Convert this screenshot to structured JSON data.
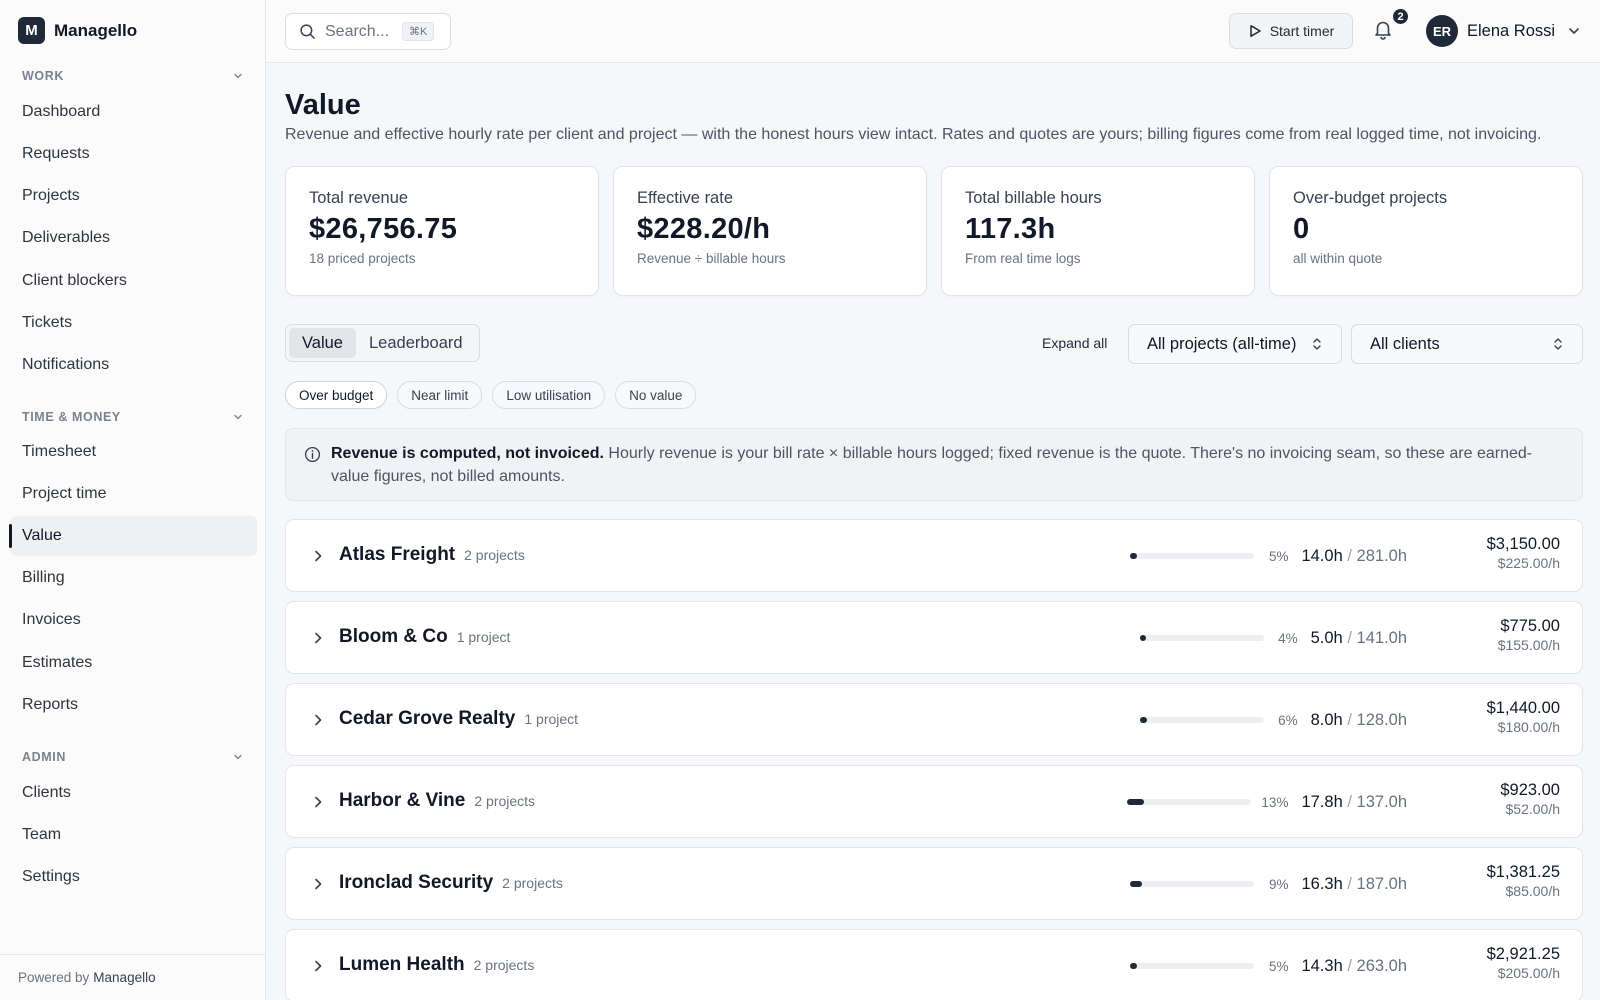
{
  "brand": {
    "mark": "M",
    "name": "Managello"
  },
  "sidebar": {
    "sections": [
      {
        "title": "WORK",
        "items": [
          "Dashboard",
          "Requests",
          "Projects",
          "Deliverables",
          "Client blockers",
          "Tickets",
          "Notifications"
        ]
      },
      {
        "title": "TIME & MONEY",
        "items": [
          "Timesheet",
          "Project time",
          "Value",
          "Billing",
          "Invoices",
          "Estimates",
          "Reports"
        ]
      },
      {
        "title": "ADMIN",
        "items": [
          "Clients",
          "Team",
          "Settings"
        ]
      }
    ],
    "active": "Value",
    "footer_prefix": "Powered by",
    "footer_brand": "Managello"
  },
  "topbar": {
    "search_placeholder": "Search...",
    "search_shortcut": "⌘K",
    "start_timer": "Start timer",
    "notification_count": "2",
    "user_initials": "ER",
    "user_name": "Elena Rossi"
  },
  "page": {
    "title": "Value",
    "subtitle": "Revenue and effective hourly rate per client and project — with the honest hours view intact. Rates and quotes are yours; billing figures come from real logged time, not invoicing."
  },
  "stats": [
    {
      "label": "Total revenue",
      "value": "$26,756.75",
      "foot": "18 priced projects"
    },
    {
      "label": "Effective rate",
      "value": "$228.20/h",
      "foot": "Revenue ÷ billable hours"
    },
    {
      "label": "Total billable hours",
      "value": "117.3h",
      "foot": "From real time logs"
    },
    {
      "label": "Over-budget projects",
      "value": "0",
      "foot": "all within quote"
    }
  ],
  "controls": {
    "tabs": [
      "Value",
      "Leaderboard"
    ],
    "active_tab": "Value",
    "expand_all": "Expand all",
    "project_select": "All projects (all-time)",
    "client_select": "All clients",
    "filters": [
      "Over budget",
      "Near limit",
      "Low utilisation",
      "No value"
    ]
  },
  "notice": {
    "strong": "Revenue is computed, not invoiced.",
    "text": " Hourly revenue is your bill rate × billable hours logged; fixed revenue is the quote. There's no invoicing seam, so these are earned-value figures, not billed amounts."
  },
  "clients": [
    {
      "name": "Atlas Freight",
      "count": "2 projects",
      "pct": "5%",
      "util": 0.05,
      "logged": "14.0h",
      "quota": "281.0h",
      "revenue": "$3,150.00",
      "rate": "$225.00/h"
    },
    {
      "name": "Bloom & Co",
      "count": "1 project",
      "pct": "4%",
      "util": 0.04,
      "logged": "5.0h",
      "quota": "141.0h",
      "revenue": "$775.00",
      "rate": "$155.00/h"
    },
    {
      "name": "Cedar Grove Realty",
      "count": "1 project",
      "pct": "6%",
      "util": 0.06,
      "logged": "8.0h",
      "quota": "128.0h",
      "revenue": "$1,440.00",
      "rate": "$180.00/h"
    },
    {
      "name": "Harbor & Vine",
      "count": "2 projects",
      "pct": "13%",
      "util": 0.13,
      "logged": "17.8h",
      "quota": "137.0h",
      "revenue": "$923.00",
      "rate": "$52.00/h"
    },
    {
      "name": "Ironclad Security",
      "count": "2 projects",
      "pct": "9%",
      "util": 0.09,
      "logged": "16.3h",
      "quota": "187.0h",
      "revenue": "$1,381.25",
      "rate": "$85.00/h"
    },
    {
      "name": "Lumen Health",
      "count": "2 projects",
      "pct": "5%",
      "util": 0.05,
      "logged": "14.3h",
      "quota": "263.0h",
      "revenue": "$2,921.25",
      "rate": "$205.00/h"
    }
  ]
}
